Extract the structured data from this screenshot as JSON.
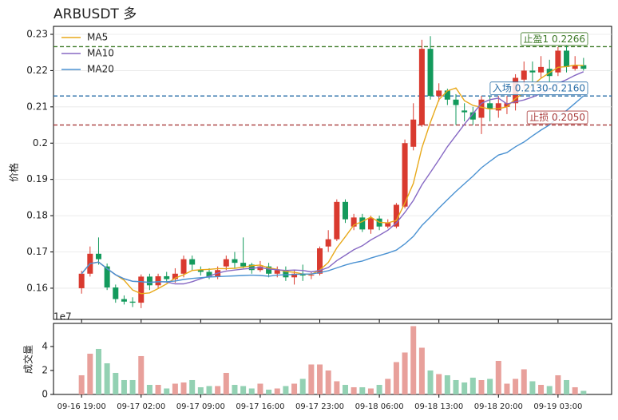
{
  "chart_data": [
    {
      "type": "candlestick",
      "title": "ARBUSDT 多",
      "ylabel": "价格",
      "categories": [
        "09-16 19:00",
        null,
        null,
        null,
        null,
        null,
        null,
        "09-17 02:00",
        null,
        null,
        null,
        null,
        null,
        null,
        "09-17 09:00",
        null,
        null,
        null,
        null,
        null,
        null,
        "09-17 16:00",
        null,
        null,
        null,
        null,
        null,
        null,
        "09-17 23:00",
        null,
        null,
        null,
        null,
        null,
        null,
        "09-18 06:00",
        null,
        null,
        null,
        null,
        null,
        null,
        "09-18 13:00",
        null,
        null,
        null,
        null,
        null,
        null,
        "09-18 20:00",
        null,
        null,
        null,
        null,
        null,
        null,
        "09-19 03:00",
        null,
        null,
        null
      ],
      "open": [
        0.16,
        0.164,
        0.1695,
        0.166,
        0.1602,
        0.157,
        0.1563,
        0.156,
        0.1632,
        0.1608,
        0.1633,
        0.1625,
        0.164,
        0.168,
        0.165,
        0.1645,
        0.1632,
        0.166,
        0.168,
        0.167,
        0.1665,
        0.165,
        0.166,
        0.164,
        0.165,
        0.163,
        0.164,
        0.1635,
        0.164,
        0.1715,
        0.1735,
        0.1838,
        0.177,
        0.1795,
        0.1762,
        0.1792,
        0.177,
        0.177,
        0.1825,
        0.199,
        0.205,
        0.226,
        0.213,
        0.2145,
        0.212,
        0.209,
        0.2085,
        0.207,
        0.211,
        0.209,
        0.21,
        0.211,
        0.2175,
        0.22,
        0.2195,
        0.2205,
        0.2195,
        0.2255,
        0.2205,
        0.2215
      ],
      "high": [
        0.1648,
        0.1715,
        0.174,
        0.1668,
        0.161,
        0.158,
        0.1575,
        0.1638,
        0.164,
        0.164,
        0.1645,
        0.1655,
        0.169,
        0.169,
        0.166,
        0.1655,
        0.166,
        0.169,
        0.17,
        0.174,
        0.167,
        0.1675,
        0.167,
        0.166,
        0.166,
        0.165,
        0.1665,
        0.1645,
        0.1715,
        0.176,
        0.1845,
        0.1845,
        0.1805,
        0.1805,
        0.18,
        0.18,
        0.179,
        0.1835,
        0.201,
        0.211,
        0.2285,
        0.2295,
        0.2165,
        0.215,
        0.2135,
        0.211,
        0.21,
        0.213,
        0.213,
        0.213,
        0.213,
        0.219,
        0.2225,
        0.2225,
        0.224,
        0.223,
        0.2265,
        0.227,
        0.224,
        0.2235
      ],
      "low": [
        0.1585,
        0.1632,
        0.1665,
        0.1595,
        0.156,
        0.1555,
        0.1548,
        0.1545,
        0.1595,
        0.16,
        0.1615,
        0.1615,
        0.163,
        0.165,
        0.1635,
        0.1625,
        0.1625,
        0.165,
        0.1655,
        0.1655,
        0.164,
        0.1645,
        0.163,
        0.163,
        0.162,
        0.161,
        0.162,
        0.1625,
        0.1635,
        0.17,
        0.173,
        0.178,
        0.176,
        0.1755,
        0.175,
        0.176,
        0.1765,
        0.1765,
        0.182,
        0.198,
        0.2045,
        0.212,
        0.2115,
        0.2105,
        0.205,
        0.206,
        0.205,
        0.2025,
        0.206,
        0.207,
        0.208,
        0.209,
        0.215,
        0.217,
        0.218,
        0.217,
        0.2185,
        0.2195,
        0.22,
        0.22
      ],
      "close": [
        0.164,
        0.1695,
        0.168,
        0.1602,
        0.157,
        0.1563,
        0.156,
        0.1632,
        0.1608,
        0.1633,
        0.1625,
        0.164,
        0.168,
        0.1665,
        0.1645,
        0.1632,
        0.165,
        0.168,
        0.167,
        0.166,
        0.165,
        0.166,
        0.164,
        0.165,
        0.163,
        0.164,
        0.1635,
        0.1637,
        0.171,
        0.1735,
        0.1838,
        0.179,
        0.1795,
        0.1762,
        0.1793,
        0.177,
        0.178,
        0.183,
        0.2,
        0.2065,
        0.226,
        0.213,
        0.2145,
        0.212,
        0.2105,
        0.2085,
        0.2065,
        0.212,
        0.2095,
        0.211,
        0.211,
        0.218,
        0.22,
        0.2195,
        0.221,
        0.2185,
        0.2255,
        0.221,
        0.2215,
        0.2205
      ],
      "up_color": "#d93a2f",
      "down_color": "#139a5c",
      "series": [
        {
          "name": "MA5",
          "color": "#e8a91a",
          "values": [
            0.164,
            0.1668,
            0.1672,
            0.1654,
            0.1637,
            0.1622,
            0.1595,
            0.1585,
            0.1587,
            0.1599,
            0.1612,
            0.1628,
            0.1637,
            0.1649,
            0.1651,
            0.1652,
            0.1654,
            0.1654,
            0.1655,
            0.1658,
            0.1662,
            0.1664,
            0.1656,
            0.1652,
            0.1646,
            0.1644,
            0.1639,
            0.1638,
            0.165,
            0.1671,
            0.1711,
            0.1742,
            0.1774,
            0.1784,
            0.1796,
            0.1782,
            0.178,
            0.1787,
            0.1835,
            0.1889,
            0.1987,
            0.2057,
            0.212,
            0.2144,
            0.2152,
            0.2117,
            0.2104,
            0.2099,
            0.2094,
            0.2095,
            0.21,
            0.2123,
            0.2139,
            0.2159,
            0.2179,
            0.2194,
            0.2209,
            0.2211,
            0.2215,
            0.2214
          ]
        },
        {
          "name": "MA10",
          "color": "#8769c4",
          "values": [
            0.164,
            0.1668,
            0.1672,
            0.1654,
            0.1637,
            0.1626,
            0.1619,
            0.1618,
            0.1616,
            0.1618,
            0.1617,
            0.1612,
            0.1612,
            0.1618,
            0.1626,
            0.1633,
            0.1642,
            0.1647,
            0.165,
            0.1653,
            0.1655,
            0.1657,
            0.1653,
            0.1651,
            0.1649,
            0.165,
            0.1649,
            0.1645,
            0.1649,
            0.1657,
            0.1676,
            0.1691,
            0.1706,
            0.1717,
            0.1733,
            0.1746,
            0.176,
            0.178,
            0.1809,
            0.1842,
            0.1885,
            0.1919,
            0.1954,
            0.199,
            0.2021,
            0.2052,
            0.2081,
            0.211,
            0.212,
            0.2124,
            0.2108,
            0.2114,
            0.2119,
            0.2127,
            0.2137,
            0.2147,
            0.2165,
            0.2175,
            0.2187,
            0.2197
          ]
        },
        {
          "name": "MA20",
          "color": "#4b92d2",
          "values": [
            0.164,
            0.1668,
            0.1672,
            0.1654,
            0.1637,
            0.1626,
            0.1619,
            0.1618,
            0.1616,
            0.1618,
            0.1618,
            0.162,
            0.1624,
            0.1627,
            0.1629,
            0.1631,
            0.1632,
            0.1633,
            0.1634,
            0.1635,
            0.1636,
            0.1635,
            0.1633,
            0.1636,
            0.1637,
            0.1638,
            0.1639,
            0.1639,
            0.1643,
            0.1648,
            0.1656,
            0.1664,
            0.167,
            0.1675,
            0.1683,
            0.169,
            0.1697,
            0.1705,
            0.1722,
            0.1743,
            0.1773,
            0.1796,
            0.1821,
            0.1844,
            0.1867,
            0.1888,
            0.1909,
            0.1932,
            0.195,
            0.1967,
            0.1974,
            0.199,
            0.2003,
            0.202,
            0.2036,
            0.205,
            0.2073,
            0.209,
            0.211,
            0.213
          ]
        }
      ],
      "levels": [
        {
          "label": "止盈1 0.2266",
          "value": 0.2266,
          "color": "#3c7a26"
        },
        {
          "label": "入场 0.2130-0.2160",
          "value": 0.213,
          "color": "#2a6fa8"
        },
        {
          "label": "止损 0.2050",
          "value": 0.205,
          "color": "#a83a3a"
        }
      ],
      "xlim": [
        -3.3,
        62.3
      ],
      "ylim": [
        0.1514,
        0.2322
      ],
      "yticks": [
        0.16,
        0.17,
        0.18,
        0.19,
        0.2,
        0.21,
        0.22,
        0.23
      ],
      "grid": true,
      "legend": "upper left"
    },
    {
      "type": "bar",
      "ylabel": "成交量",
      "offset_label": "1e7",
      "values": [
        1.6,
        3.4,
        3.8,
        2.6,
        1.8,
        1.2,
        1.2,
        3.2,
        0.8,
        0.8,
        0.5,
        0.9,
        1.0,
        1.2,
        0.6,
        0.7,
        0.7,
        1.8,
        0.8,
        0.7,
        0.5,
        0.9,
        0.4,
        0.5,
        0.7,
        0.9,
        1.3,
        2.5,
        2.5,
        2.0,
        1.1,
        0.8,
        0.6,
        0.6,
        0.5,
        0.8,
        1.3,
        2.7,
        3.5,
        5.7,
        3.9,
        2.0,
        1.7,
        1.6,
        1.2,
        1.0,
        1.4,
        1.2,
        1.3,
        2.8,
        0.9,
        1.3,
        2.1,
        1.1,
        0.8,
        0.7,
        1.6,
        1.2,
        0.6,
        0.3
      ],
      "up_color": "#e8a09b",
      "down_color": "#93d1b3",
      "ylim": [
        0,
        5.93
      ],
      "yticks": [
        0,
        2,
        4
      ]
    }
  ]
}
